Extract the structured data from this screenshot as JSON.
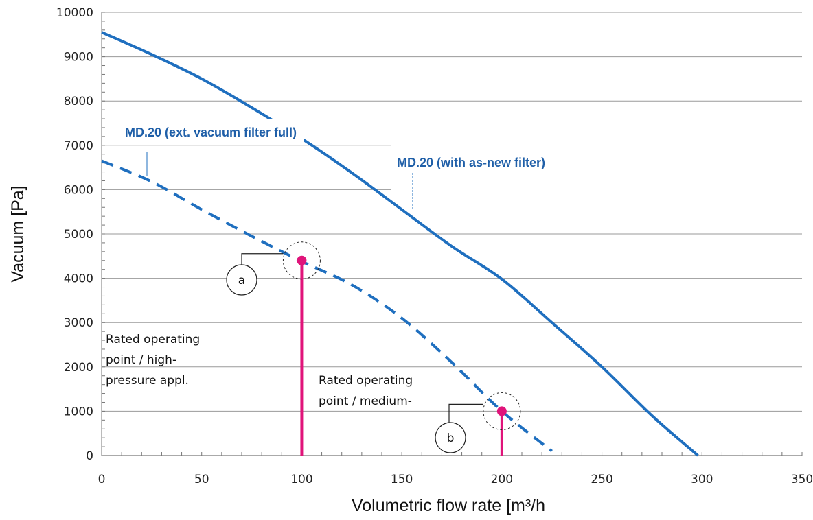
{
  "chart_data": {
    "type": "line",
    "title": "",
    "xlabel": "Volumetric flow rate [m³/h",
    "ylabel": "Vacuum [Pa]",
    "xlim": [
      0,
      350
    ],
    "ylim": [
      0,
      10000
    ],
    "x_ticks": [
      0,
      50,
      100,
      150,
      200,
      250,
      300,
      350
    ],
    "y_ticks": [
      0,
      1000,
      2000,
      3000,
      4000,
      5000,
      6000,
      7000,
      8000,
      9000,
      10000
    ],
    "grid": "horizontal",
    "series": [
      {
        "name": "MD.20 (with as-new filter)",
        "style": "solid",
        "color": "#1f6fbf",
        "x": [
          0,
          25,
          50,
          75,
          100,
          125,
          150,
          175,
          200,
          225,
          250,
          275,
          298
        ],
        "y": [
          9550,
          9050,
          8500,
          7850,
          7150,
          6380,
          5550,
          4720,
          3980,
          3000,
          2000,
          900,
          0
        ]
      },
      {
        "name": "MD.20 (ext. vacuum filter full)",
        "style": "dashed",
        "color": "#1f6fbf",
        "x": [
          0,
          25,
          50,
          75,
          100,
          125,
          150,
          175,
          200,
          225
        ],
        "y": [
          6650,
          6180,
          5550,
          4950,
          4380,
          3850,
          3100,
          2100,
          1000,
          100
        ]
      }
    ],
    "operating_points": [
      {
        "id": "a",
        "x": 100,
        "y": 4400,
        "color": "#e0147a"
      },
      {
        "id": "b",
        "x": 200,
        "y": 1000,
        "color": "#e0147a"
      }
    ],
    "annotations": [
      {
        "id": "high",
        "lines": [
          "Rated operating",
          "point / high-",
          "pressure appl."
        ]
      },
      {
        "id": "medium",
        "lines": [
          "Rated operating",
          "point / medium-"
        ]
      }
    ]
  }
}
